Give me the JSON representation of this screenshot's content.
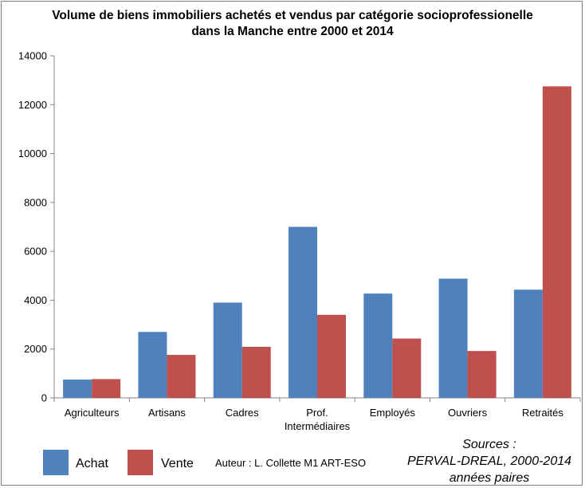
{
  "chart_data": {
    "type": "bar",
    "title_lines": [
      "Volume de biens immobiliers achetés et vendus par catégorie socioprofessionelle",
      "dans la Manche entre 2000 et 2014"
    ],
    "categories": [
      [
        "Agriculteurs"
      ],
      [
        "Artisans"
      ],
      [
        "Cadres"
      ],
      [
        "Prof.",
        "Intermédiaires"
      ],
      [
        "Employés"
      ],
      [
        "Ouvriers"
      ],
      [
        "Retraités"
      ]
    ],
    "series": [
      {
        "name": "Achat",
        "color": "#4f81bd",
        "values": [
          750,
          2700,
          3900,
          7000,
          4270,
          4880,
          4430
        ]
      },
      {
        "name": "Vente",
        "color": "#c0504d",
        "values": [
          770,
          1760,
          2090,
          3400,
          2430,
          1920,
          12750
        ]
      }
    ],
    "ylim": [
      0,
      14000
    ],
    "yticks": [
      0,
      2000,
      4000,
      6000,
      8000,
      10000,
      12000,
      14000
    ],
    "grid": false,
    "legend_position": "bottom-left",
    "author": "Auteur : L. Collette M1 ART-ESO",
    "source_lines": [
      "Sources :",
      "PERVAL-DREAL, 2000-2014",
      "années paires"
    ]
  }
}
